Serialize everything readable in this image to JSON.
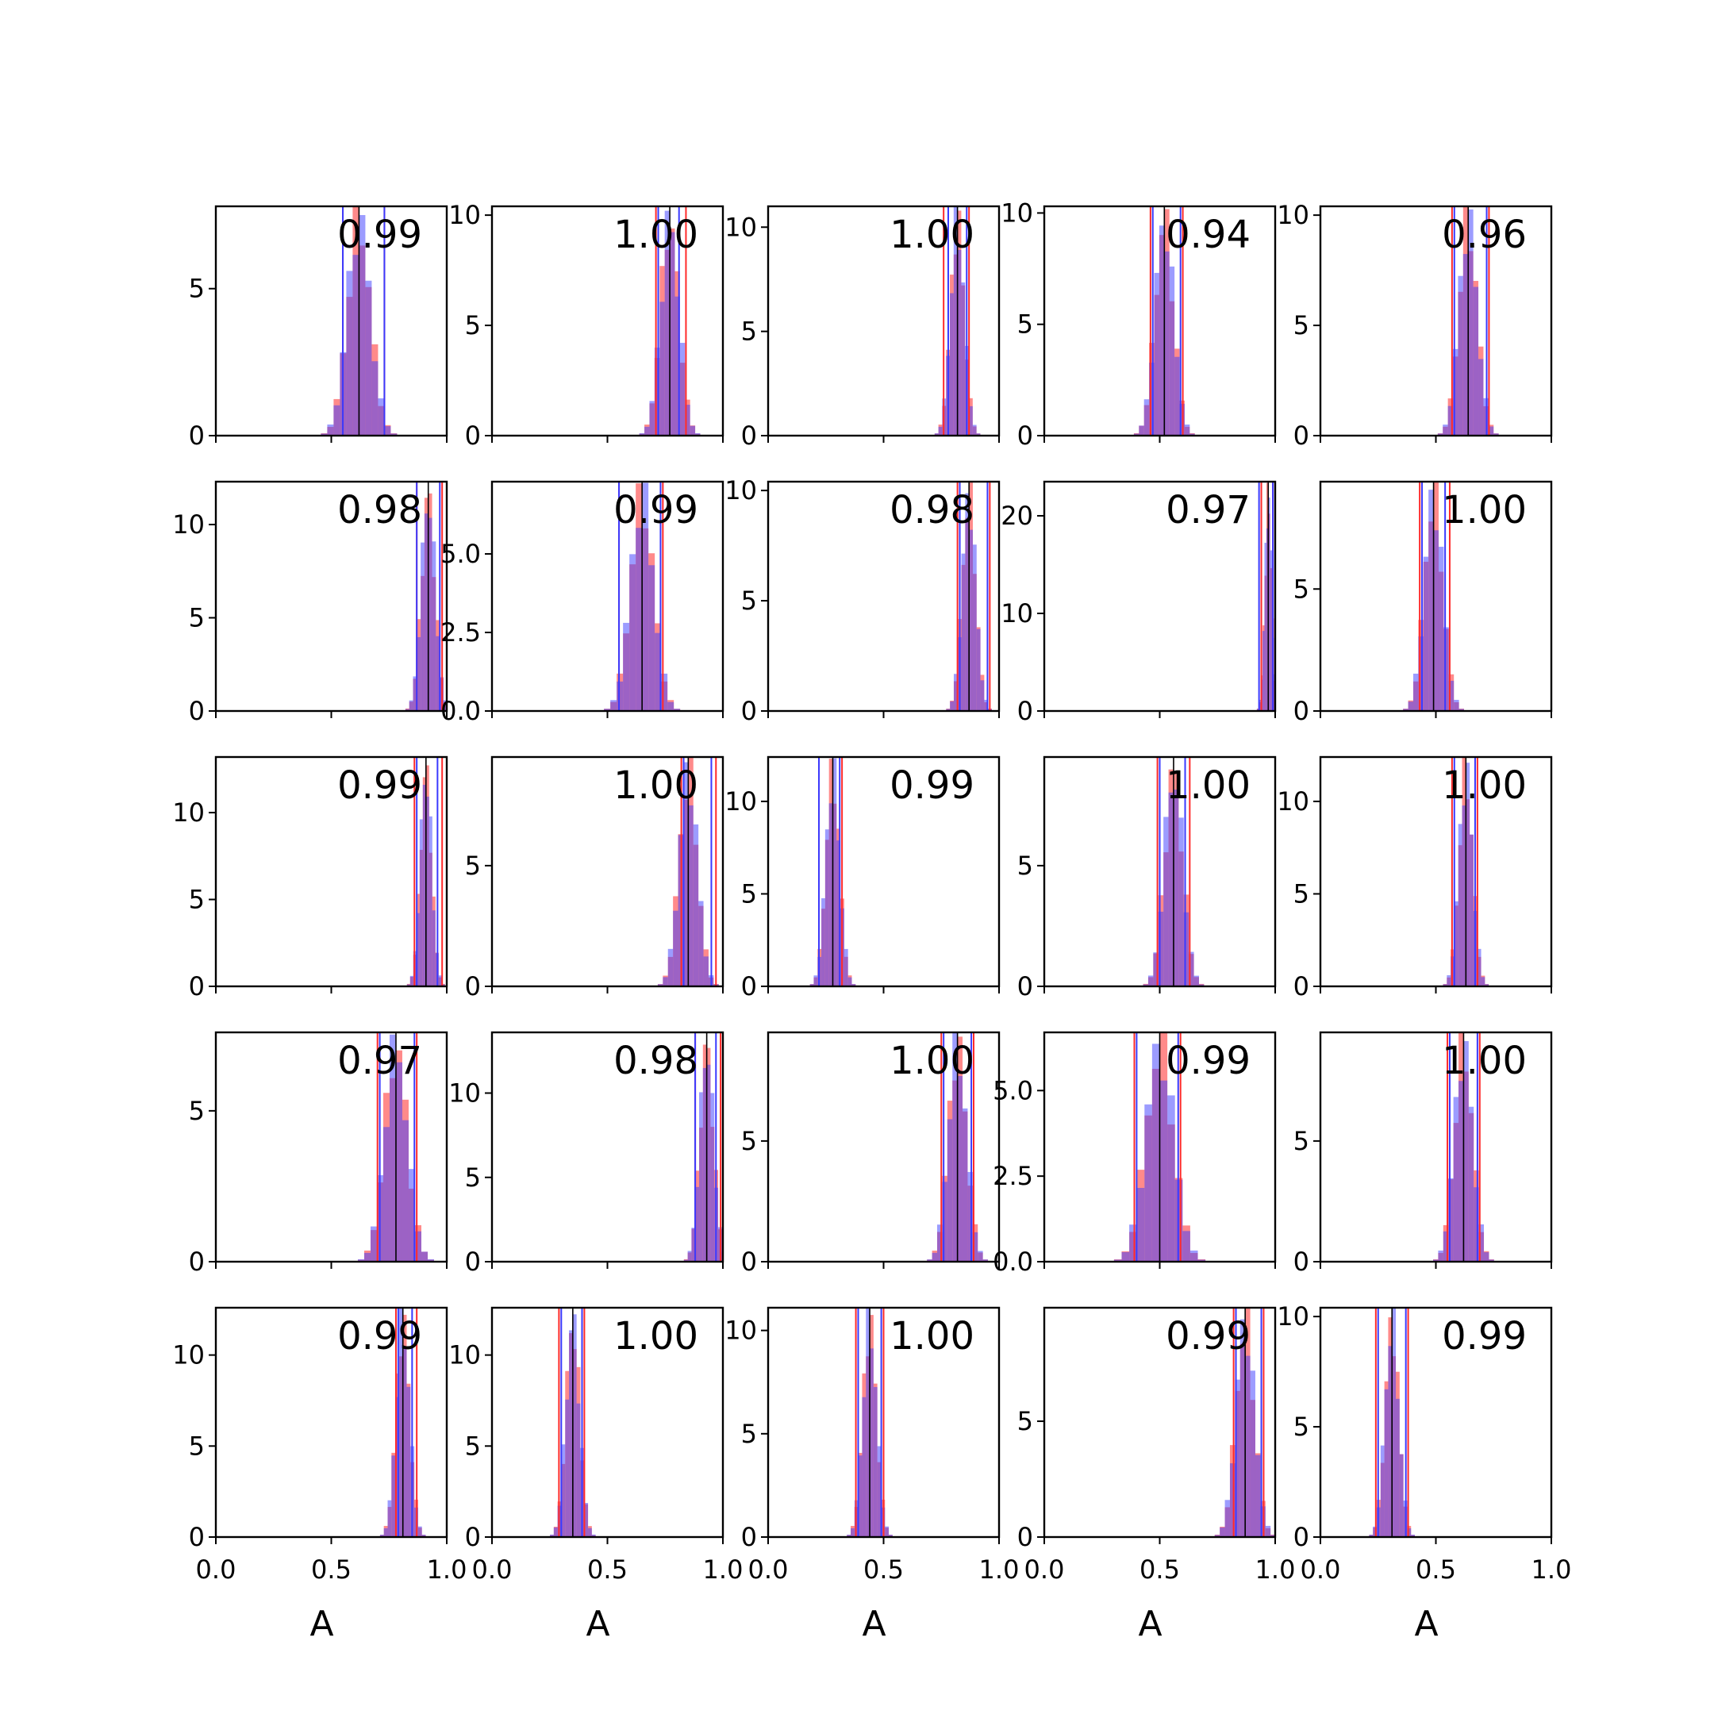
{
  "colors": {
    "red": "#ff2a2a",
    "blue": "#3a3aff",
    "line": "#000000"
  },
  "chart_data": {
    "type": "histogram-grid",
    "rows": 5,
    "cols": 5,
    "xlim": [
      0,
      1
    ],
    "xticks": [
      "0.0",
      "0.5",
      "1.0"
    ],
    "xlabel": "A",
    "panels": [
      {
        "label": "0.99",
        "center": 0.62,
        "spread": 0.05,
        "ymax": 7.8,
        "yticks": [
          0,
          5
        ],
        "ytick_labels": [
          "0",
          "5"
        ],
        "red_lines": [
          0.55,
          0.73
        ],
        "blue_lines": [
          0.55,
          0.73
        ]
      },
      {
        "label": "1.00",
        "center": 0.77,
        "spread": 0.04,
        "ymax": 10.4,
        "yticks": [
          0,
          5,
          10
        ],
        "ytick_labels": [
          "0",
          "5",
          "10"
        ],
        "red_lines": [
          0.71,
          0.84
        ],
        "blue_lines": [
          0.72,
          0.81
        ]
      },
      {
        "label": "1.00",
        "center": 0.82,
        "spread": 0.03,
        "ymax": 11.0,
        "yticks": [
          0,
          5,
          10
        ],
        "ytick_labels": [
          "0",
          "5",
          "10"
        ],
        "red_lines": [
          0.76,
          0.87
        ],
        "blue_lines": [
          0.78,
          0.86
        ]
      },
      {
        "label": "0.94",
        "center": 0.52,
        "spread": 0.04,
        "ymax": 10.3,
        "yticks": [
          0,
          5,
          10
        ],
        "ytick_labels": [
          "0",
          "5",
          "10"
        ],
        "red_lines": [
          0.46,
          0.6
        ],
        "blue_lines": [
          0.47,
          0.59
        ]
      },
      {
        "label": "0.96",
        "center": 0.64,
        "spread": 0.04,
        "ymax": 10.4,
        "yticks": [
          0,
          5,
          10
        ],
        "ytick_labels": [
          "0",
          "5",
          "10"
        ],
        "red_lines": [
          0.57,
          0.73
        ],
        "blue_lines": [
          0.58,
          0.72
        ]
      },
      {
        "label": "0.98",
        "center": 0.92,
        "spread": 0.03,
        "ymax": 12.3,
        "yticks": [
          0,
          5,
          10
        ],
        "ytick_labels": [
          "0",
          "5",
          "10"
        ],
        "red_lines": [
          0.87,
          0.98
        ],
        "blue_lines": [
          0.87,
          0.97
        ]
      },
      {
        "label": "0.99",
        "center": 0.65,
        "spread": 0.05,
        "ymax": 7.3,
        "yticks": [
          0,
          2.5,
          5.0
        ],
        "ytick_labels": [
          "0.0",
          "2.5",
          "5.0"
        ],
        "red_lines": [
          0.55,
          0.74
        ],
        "blue_lines": [
          0.55,
          0.73
        ]
      },
      {
        "label": "0.98",
        "center": 0.87,
        "spread": 0.03,
        "ymax": 10.4,
        "yticks": [
          0,
          5,
          10
        ],
        "ytick_labels": [
          "0",
          "5",
          "10"
        ],
        "red_lines": [
          0.82,
          0.96
        ],
        "blue_lines": [
          0.83,
          0.95
        ]
      },
      {
        "label": "0.97",
        "center": 0.97,
        "spread": 0.015,
        "ymax": 23.5,
        "yticks": [
          0,
          10,
          20
        ],
        "ytick_labels": [
          "0",
          "10",
          "20"
        ],
        "red_lines": [
          0.94,
          0.99
        ],
        "blue_lines": [
          0.93,
          0.99
        ]
      },
      {
        "label": "1.00",
        "center": 0.49,
        "spread": 0.04,
        "ymax": 9.4,
        "yticks": [
          0,
          5
        ],
        "ytick_labels": [
          "0",
          "5"
        ],
        "red_lines": [
          0.43,
          0.56
        ],
        "blue_lines": [
          0.44,
          0.54
        ]
      },
      {
        "label": "0.99",
        "center": 0.91,
        "spread": 0.025,
        "ymax": 13.2,
        "yticks": [
          0,
          5,
          10
        ],
        "ytick_labels": [
          "0",
          "5",
          "10"
        ],
        "red_lines": [
          0.86,
          0.98
        ],
        "blue_lines": [
          0.87,
          0.96
        ]
      },
      {
        "label": "1.00",
        "center": 0.85,
        "spread": 0.04,
        "ymax": 9.5,
        "yticks": [
          0,
          5
        ],
        "ytick_labels": [
          "0",
          "5"
        ],
        "red_lines": [
          0.82,
          0.97
        ],
        "blue_lines": [
          0.83,
          0.95
        ]
      },
      {
        "label": "0.99",
        "center": 0.28,
        "spread": 0.03,
        "ymax": 12.4,
        "yticks": [
          0,
          5,
          10
        ],
        "ytick_labels": [
          "0",
          "5",
          "10"
        ],
        "red_lines": [
          0.22,
          0.32
        ],
        "blue_lines": [
          0.22,
          0.31
        ]
      },
      {
        "label": "1.00",
        "center": 0.56,
        "spread": 0.04,
        "ymax": 9.5,
        "yticks": [
          0,
          5
        ],
        "ytick_labels": [
          "0",
          "5"
        ],
        "red_lines": [
          0.49,
          0.63
        ],
        "blue_lines": [
          0.5,
          0.61
        ]
      },
      {
        "label": "1.00",
        "center": 0.63,
        "spread": 0.03,
        "ymax": 12.4,
        "yticks": [
          0,
          5,
          10
        ],
        "ytick_labels": [
          "0",
          "5",
          "10"
        ],
        "red_lines": [
          0.57,
          0.68
        ],
        "blue_lines": [
          0.58,
          0.67
        ]
      },
      {
        "label": "0.97",
        "center": 0.78,
        "spread": 0.05,
        "ymax": 7.6,
        "yticks": [
          0,
          5
        ],
        "ytick_labels": [
          "0",
          "5"
        ],
        "red_lines": [
          0.7,
          0.87
        ],
        "blue_lines": [
          0.71,
          0.86
        ]
      },
      {
        "label": "0.98",
        "center": 0.93,
        "spread": 0.03,
        "ymax": 13.6,
        "yticks": [
          0,
          5,
          10
        ],
        "ytick_labels": [
          "0",
          "5",
          "10"
        ],
        "red_lines": [
          0.88,
          0.99
        ],
        "blue_lines": [
          0.88,
          0.97
        ]
      },
      {
        "label": "1.00",
        "center": 0.82,
        "spread": 0.04,
        "ymax": 9.5,
        "yticks": [
          0,
          5
        ],
        "ytick_labels": [
          "0",
          "5"
        ],
        "red_lines": [
          0.75,
          0.89
        ],
        "blue_lines": [
          0.76,
          0.88
        ]
      },
      {
        "label": "0.99",
        "center": 0.5,
        "spread": 0.06,
        "ymax": 6.7,
        "yticks": [
          0,
          2.5,
          5.0
        ],
        "ytick_labels": [
          "0.0",
          "2.5",
          "5.0"
        ],
        "red_lines": [
          0.39,
          0.59
        ],
        "blue_lines": [
          0.4,
          0.58
        ]
      },
      {
        "label": "1.00",
        "center": 0.62,
        "spread": 0.04,
        "ymax": 9.5,
        "yticks": [
          0,
          5
        ],
        "ytick_labels": [
          "0",
          "5"
        ],
        "red_lines": [
          0.55,
          0.69
        ],
        "blue_lines": [
          0.56,
          0.68
        ]
      },
      {
        "label": "0.99",
        "center": 0.81,
        "spread": 0.03,
        "ymax": 12.6,
        "yticks": [
          0,
          5,
          10
        ],
        "ytick_labels": [
          "0",
          "5",
          "10"
        ],
        "red_lines": [
          0.78,
          0.87
        ],
        "blue_lines": [
          0.79,
          0.85
        ]
      },
      {
        "label": "1.00",
        "center": 0.35,
        "spread": 0.03,
        "ymax": 12.6,
        "yticks": [
          0,
          5,
          10
        ],
        "ytick_labels": [
          "0",
          "5",
          "10"
        ],
        "red_lines": [
          0.29,
          0.4
        ],
        "blue_lines": [
          0.3,
          0.39
        ]
      },
      {
        "label": "1.00",
        "center": 0.44,
        "spread": 0.03,
        "ymax": 11.1,
        "yticks": [
          0,
          5,
          10
        ],
        "ytick_labels": [
          "0",
          "5",
          "10"
        ],
        "red_lines": [
          0.38,
          0.5
        ],
        "blue_lines": [
          0.39,
          0.49
        ]
      },
      {
        "label": "0.99",
        "center": 0.87,
        "spread": 0.04,
        "ymax": 9.9,
        "yticks": [
          0,
          5
        ],
        "ytick_labels": [
          "0",
          "5"
        ],
        "red_lines": [
          0.82,
          0.95
        ],
        "blue_lines": [
          0.83,
          0.94
        ]
      },
      {
        "label": "0.99",
        "center": 0.31,
        "spread": 0.03,
        "ymax": 10.4,
        "yticks": [
          0,
          5,
          10
        ],
        "ytick_labels": [
          "0",
          "5",
          "10"
        ],
        "red_lines": [
          0.24,
          0.38
        ],
        "blue_lines": [
          0.25,
          0.37
        ]
      }
    ]
  }
}
